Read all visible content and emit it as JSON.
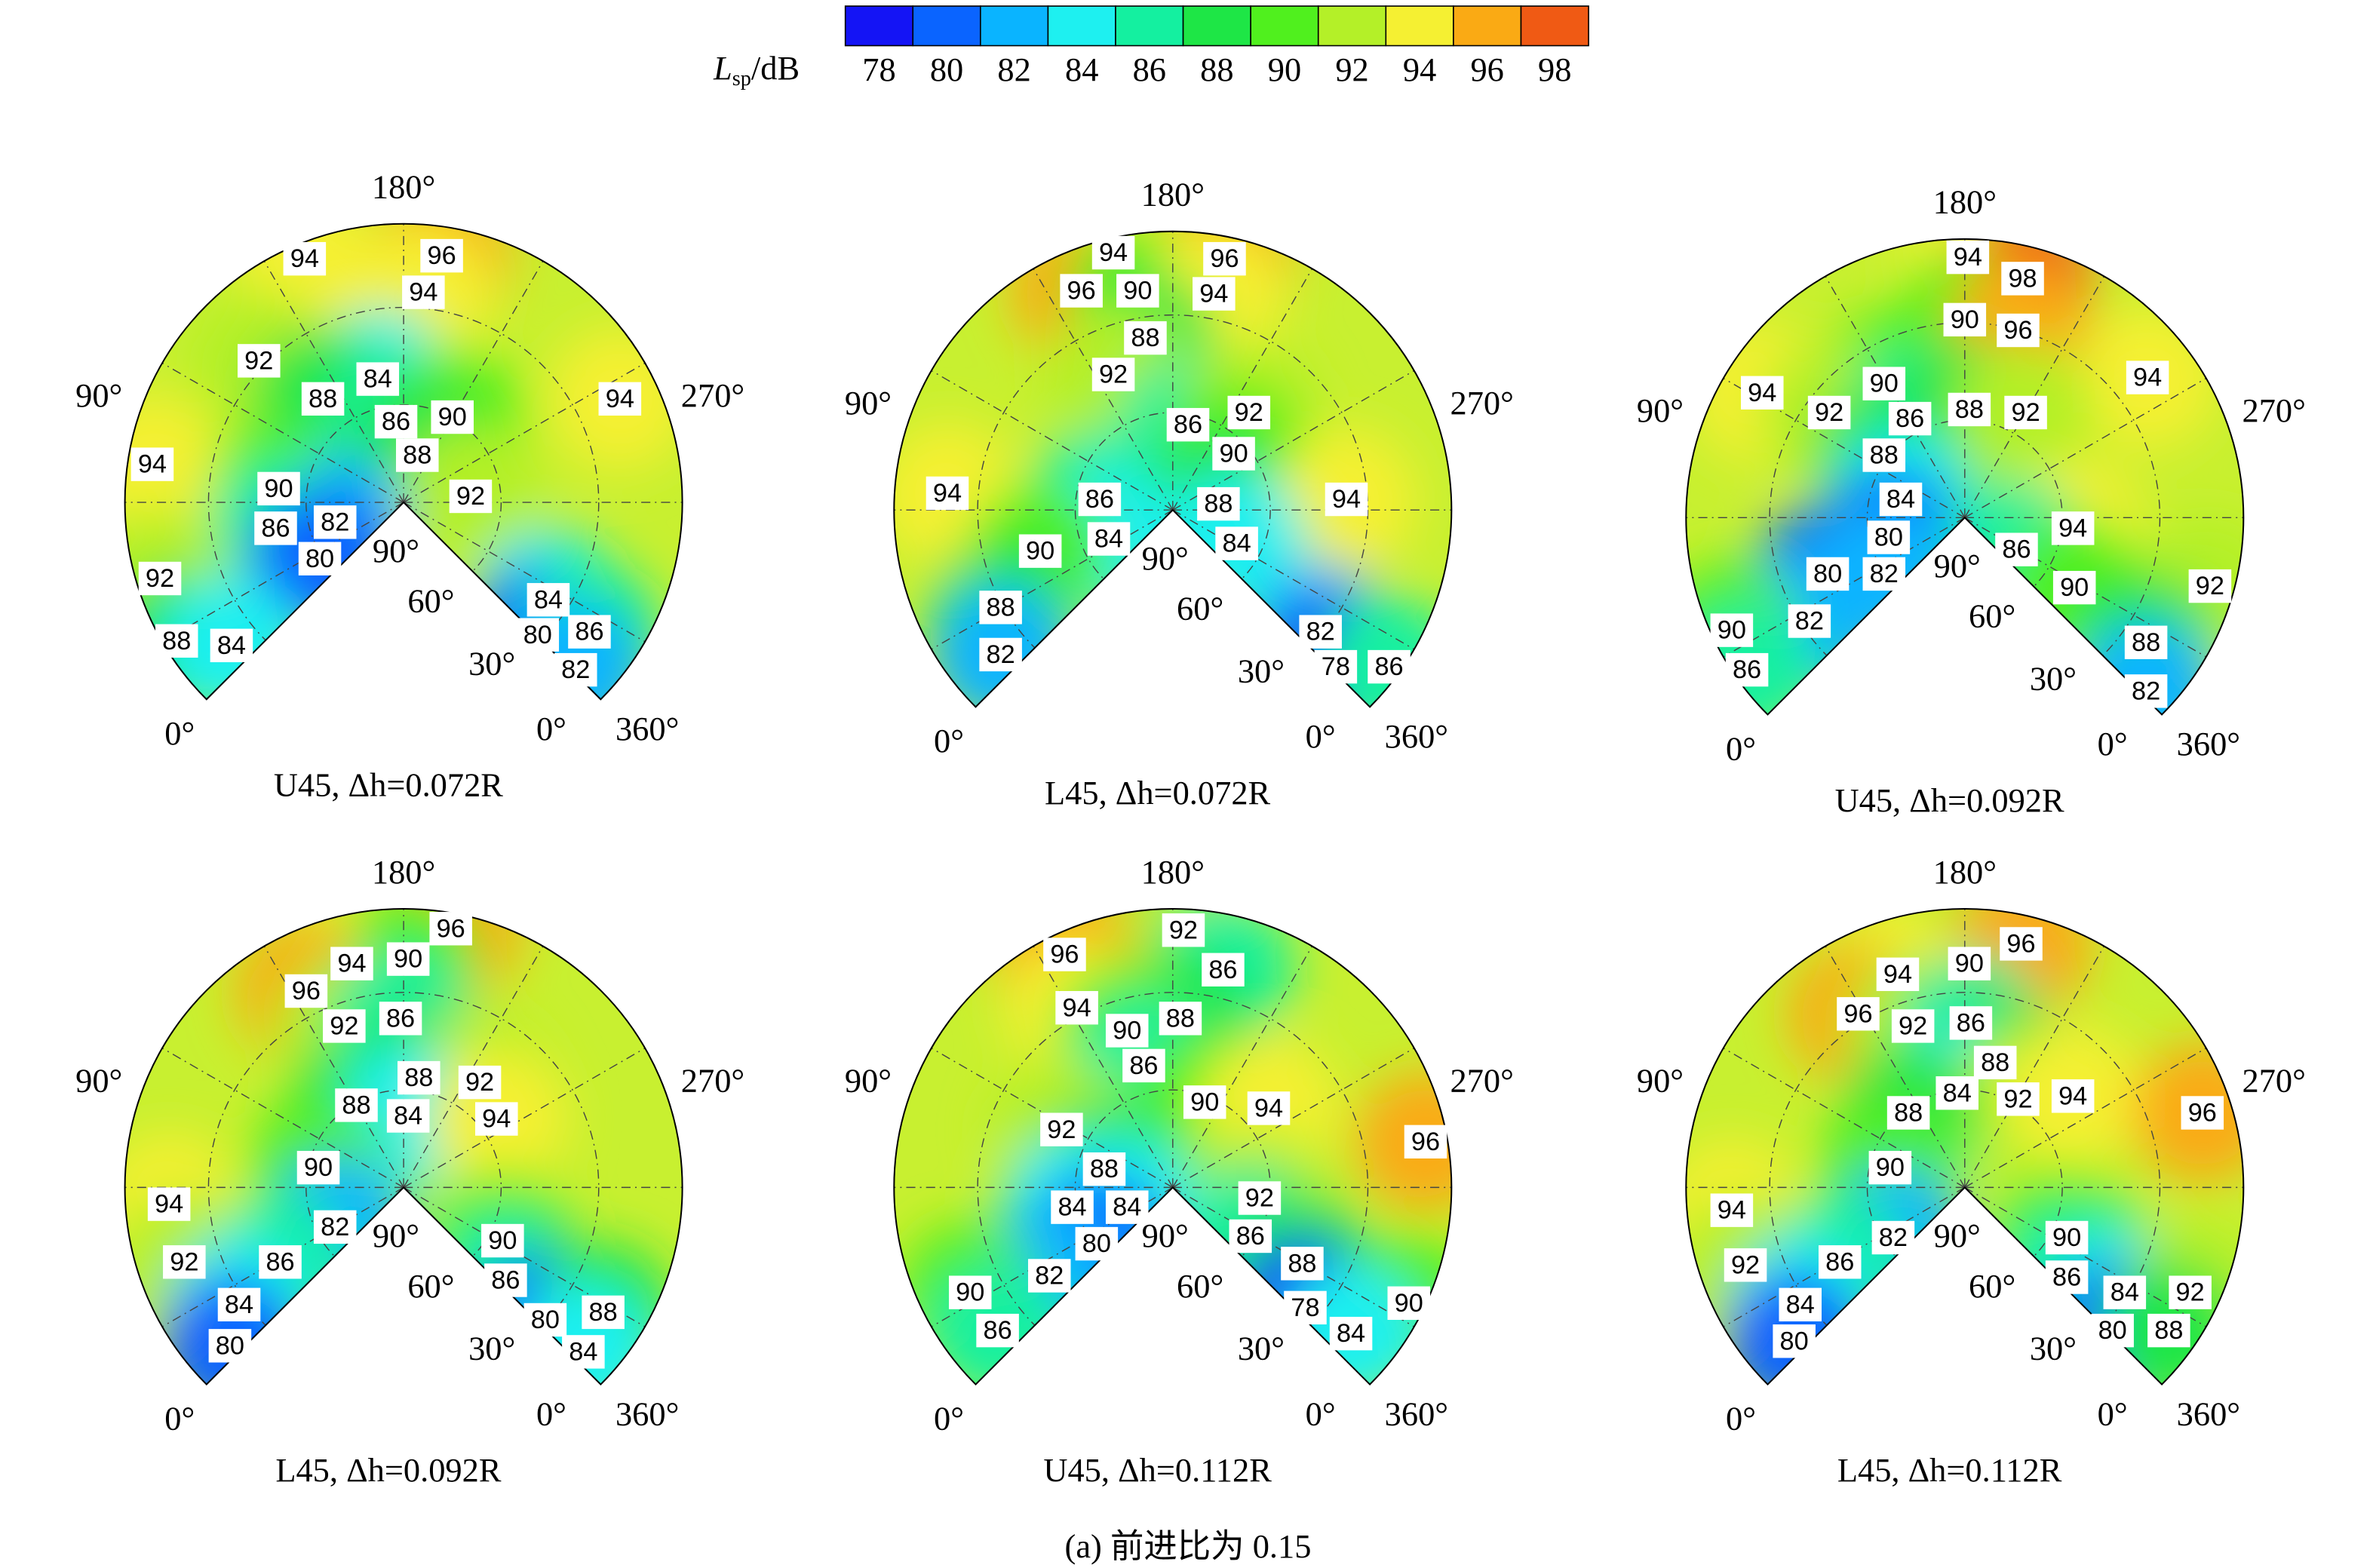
{
  "chart_data": {
    "type": "polar-contour",
    "colorbar": {
      "symbol": "L",
      "subscript": "sp",
      "unit": "/dB",
      "levels": [
        78,
        80,
        82,
        84,
        86,
        88,
        90,
        92,
        94,
        96,
        98
      ],
      "colors": [
        "#1414f5",
        "#0a64ff",
        "#0ab4ff",
        "#1ef0f0",
        "#14f0a0",
        "#1ee646",
        "#50f01e",
        "#b4f028",
        "#f5f032",
        "#faaa14",
        "#f05a14"
      ]
    },
    "angle_labels": [
      "180°",
      "90°",
      "270°",
      "90°",
      "60°",
      "30°",
      "0°",
      "0°",
      "360°"
    ],
    "panels": [
      {
        "title": "U45, Δh=0.072R",
        "labels": [
          94,
          96,
          94,
          92,
          84,
          88,
          86,
          90,
          94,
          88,
          94,
          90,
          92,
          82,
          86,
          80,
          92,
          84,
          80,
          86,
          88,
          84,
          82
        ]
      },
      {
        "title": "L45, Δh=0.072R",
        "labels": [
          94,
          96,
          96,
          90,
          94,
          88,
          92,
          86,
          92,
          90,
          94,
          86,
          88,
          94,
          84,
          84,
          90,
          88,
          82,
          82,
          78,
          86
        ]
      },
      {
        "title": "U45, Δh=0.092R",
        "labels": [
          94,
          98,
          90,
          96,
          94,
          94,
          90,
          92,
          86,
          88,
          92,
          88,
          84,
          94,
          80,
          86,
          80,
          82,
          90,
          92,
          82,
          90,
          88,
          86,
          82
        ]
      },
      {
        "title": "L45, Δh=0.092R",
        "labels": [
          96,
          94,
          90,
          96,
          92,
          86,
          88,
          92,
          88,
          84,
          94,
          90,
          94,
          82,
          90,
          92,
          86,
          86,
          84,
          80,
          88,
          80,
          84
        ]
      },
      {
        "title": "U45, Δh=0.112R",
        "labels": [
          92,
          96,
          86,
          94,
          88,
          90,
          86,
          90,
          94,
          96,
          92,
          88,
          84,
          84,
          92,
          80,
          86,
          88,
          82,
          90,
          78,
          90,
          86,
          84
        ]
      },
      {
        "title": "L45, Δh=0.112R",
        "labels": [
          90,
          96,
          94,
          96,
          92,
          86,
          88,
          84,
          92,
          94,
          88,
          96,
          90,
          94,
          82,
          90,
          92,
          86,
          86,
          84,
          84,
          92,
          80,
          80,
          88
        ]
      }
    ],
    "caption": "(a) 前进比为 0.15"
  }
}
